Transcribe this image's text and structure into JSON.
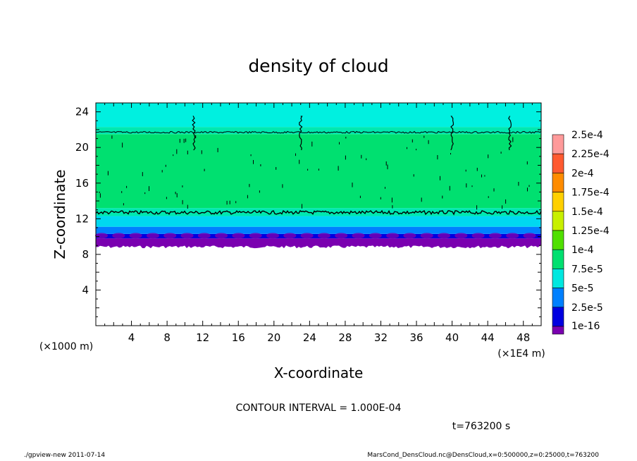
{
  "chart_data": {
    "type": "heatmap",
    "title": "density of cloud",
    "xlabel": "X-coordinate",
    "ylabel": "Z-coordinate",
    "x_unit_label": "(×1E4 m)",
    "y_unit_label": "(×1000 m)",
    "xlim": [
      0,
      50
    ],
    "ylim": [
      0,
      25
    ],
    "x_ticks": [
      4,
      8,
      12,
      16,
      20,
      24,
      28,
      32,
      36,
      40,
      44,
      48
    ],
    "y_ticks": [
      4,
      8,
      12,
      16,
      20,
      24
    ],
    "colorbar": {
      "labels": [
        "2.5e-4",
        "2.25e-4",
        "2e-4",
        "1.75e-4",
        "1.5e-4",
        "1.25e-4",
        "1e-4",
        "7.5e-5",
        "5e-5",
        "2.5e-5",
        "1e-16"
      ],
      "colors": [
        "#ff9a9a",
        "#ff5a30",
        "#ff8c00",
        "#ffd000",
        "#c8f000",
        "#50e000",
        "#00e070",
        "#00e8e0",
        "#0080ff",
        "#0000e0",
        "#7a00b0"
      ]
    },
    "cloud_layer": {
      "bottom_z": 9,
      "top_z": 25,
      "levels": [
        {
          "z_from": 9.0,
          "z_to": 9.8,
          "color": "#7a00b0"
        },
        {
          "z_from": 9.8,
          "z_to": 10.3,
          "color": "#0000e0"
        },
        {
          "z_from": 10.3,
          "z_to": 11.1,
          "color": "#0080ff"
        },
        {
          "z_from": 11.1,
          "z_to": 12.3,
          "color": "#00d8f0"
        },
        {
          "z_from": 12.3,
          "z_to": 13.2,
          "color": "#00e8b0"
        },
        {
          "z_from": 13.2,
          "z_to": 21.5,
          "color": "#00e070"
        },
        {
          "z_from": 21.5,
          "z_to": 22.3,
          "color": "#00e8b0"
        },
        {
          "z_from": 22.3,
          "z_to": 25.0,
          "color": "#00f0e0"
        }
      ],
      "contour_levels_z": [
        12.7,
        21.7
      ],
      "vertical_features_x": [
        11,
        23,
        40,
        46.5
      ]
    },
    "contour_interval_text": "CONTOUR INTERVAL = 1.000E-04",
    "time_text": "t=763200 s"
  },
  "footer": {
    "left": "./gpview-new  2011-07-14",
    "right": "MarsCond_DensCloud.nc@DensCloud,x=0:500000,z=0:25000,t=763200"
  }
}
